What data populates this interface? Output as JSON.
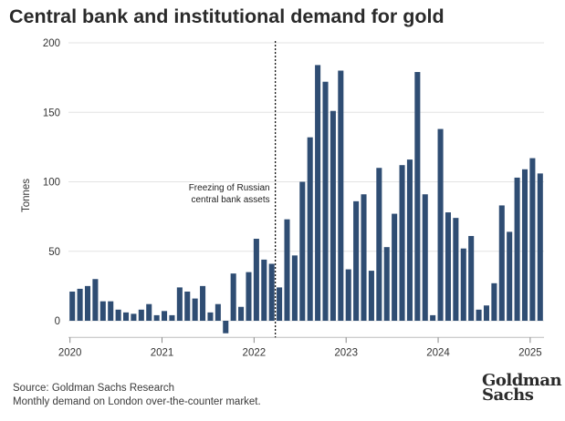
{
  "title": "Central bank and institutional demand for gold",
  "footer": {
    "source": "Source: Goldman Sachs Research",
    "note": "Monthly demand on London over-the-counter market."
  },
  "logo": {
    "line1": "Goldman",
    "line2": "Sachs"
  },
  "chart_data": {
    "type": "bar",
    "title": "Central bank and institutional demand for gold",
    "ylabel": "Tonnes",
    "xlabel": "",
    "ylim": [
      -10,
      200
    ],
    "yticks": [
      0,
      50,
      100,
      150,
      200
    ],
    "xticks": [
      {
        "label": "2020",
        "month_index": 0
      },
      {
        "label": "2021",
        "month_index": 12
      },
      {
        "label": "2022",
        "month_index": 24
      },
      {
        "label": "2023",
        "month_index": 36
      },
      {
        "label": "2024",
        "month_index": 48
      },
      {
        "label": "2025",
        "month_index": 60
      }
    ],
    "start": "2020-01",
    "frequency": "monthly",
    "values": [
      21,
      23,
      25,
      30,
      14,
      14,
      8,
      6,
      5,
      8,
      12,
      4,
      7,
      4,
      24,
      21,
      16,
      25,
      6,
      12,
      -9,
      34,
      10,
      35,
      59,
      44,
      41,
      24,
      73,
      47,
      100,
      132,
      184,
      172,
      151,
      180,
      37,
      86,
      91,
      36,
      110,
      53,
      77,
      112,
      116,
      179,
      91,
      4,
      138,
      78,
      74,
      52,
      61,
      8,
      11,
      27,
      83,
      64,
      103,
      109,
      117,
      106
    ],
    "color": "#2f4d73",
    "annotation": {
      "text_lines": [
        "Freezing of Russian",
        "central bank assets"
      ],
      "month_index": 26
    },
    "grid": "horizontal"
  }
}
